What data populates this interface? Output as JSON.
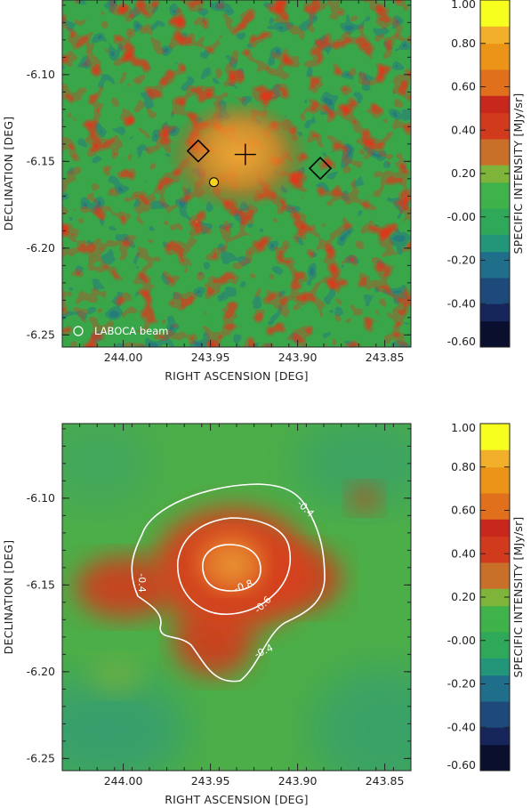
{
  "colors": {
    "colormap": [
      "#0b0f2e",
      "#17265a",
      "#1d4a7a",
      "#1f6f8a",
      "#23967a",
      "#2fa85a",
      "#3fb24a",
      "#7fb43a",
      "#c8702a",
      "#d23a1e",
      "#c8281c",
      "#e0701c",
      "#ec9418",
      "#f2b02a",
      "#f7ff1f"
    ]
  },
  "chart_data": [
    {
      "type": "heatmap",
      "title": "",
      "xlabel": "RIGHT ASCENSION [DEG]",
      "ylabel": "DECLINATION [DEG]",
      "xlim": [
        244.035,
        243.835
      ],
      "ylim": [
        -6.257,
        -6.057
      ],
      "x_ticks": [
        {
          "value": 244.0,
          "label": "244.00"
        },
        {
          "value": 243.95,
          "label": "243.95"
        },
        {
          "value": 243.9,
          "label": "243.90"
        },
        {
          "value": 243.85,
          "label": "243.85"
        }
      ],
      "y_ticks": [
        {
          "value": -6.1,
          "label": "-6.10"
        },
        {
          "value": -6.15,
          "label": "-6.15"
        },
        {
          "value": -6.2,
          "label": "-6.20"
        },
        {
          "value": -6.25,
          "label": "-6.25"
        }
      ],
      "colorbar": {
        "label": "SPECIFIC INTENSITY [MJy/sr]",
        "range": [
          -0.6,
          1.0
        ],
        "ticks": [
          {
            "value": 1.0,
            "label": "1.00"
          },
          {
            "value": 0.8,
            "label": "0.80"
          },
          {
            "value": 0.6,
            "label": "0.60"
          },
          {
            "value": 0.4,
            "label": "0.40"
          },
          {
            "value": 0.2,
            "label": "0.20"
          },
          {
            "value": 0.0,
            "label": "-0.00"
          },
          {
            "value": -0.2,
            "label": "-0.20"
          },
          {
            "value": -0.4,
            "label": "-0.40"
          },
          {
            "value": -0.6,
            "label": "-0.60"
          }
        ]
      },
      "markers": [
        {
          "shape": "diamond",
          "x": 243.957,
          "y": -6.144
        },
        {
          "shape": "cross",
          "x": 243.93,
          "y": -6.146
        },
        {
          "shape": "diamond",
          "x": 243.887,
          "y": -6.154
        },
        {
          "shape": "circle",
          "x": 243.948,
          "y": -6.162
        }
      ],
      "beam_label": "LABOCA beam"
    },
    {
      "type": "heatmap",
      "title": "",
      "xlabel": "RIGHT ASCENSION [DEG]",
      "ylabel": "DECLINATION [DEG]",
      "xlim": [
        244.035,
        243.835
      ],
      "ylim": [
        -6.257,
        -6.057
      ],
      "x_ticks": [
        {
          "value": 244.0,
          "label": "244.00"
        },
        {
          "value": 243.95,
          "label": "243.95"
        },
        {
          "value": 243.9,
          "label": "243.90"
        },
        {
          "value": 243.85,
          "label": "243.85"
        }
      ],
      "y_ticks": [
        {
          "value": -6.1,
          "label": "-6.10"
        },
        {
          "value": -6.15,
          "label": "-6.15"
        },
        {
          "value": -6.2,
          "label": "-6.20"
        },
        {
          "value": -6.25,
          "label": "-6.25"
        }
      ],
      "colorbar": {
        "label": "SPECIFIC INTENSITY [MJy/sr]",
        "range": [
          -0.6,
          1.0
        ],
        "ticks": [
          {
            "value": 1.0,
            "label": "1.00"
          },
          {
            "value": 0.8,
            "label": "0.80"
          },
          {
            "value": 0.6,
            "label": "0.60"
          },
          {
            "value": 0.4,
            "label": "0.40"
          },
          {
            "value": 0.2,
            "label": "0.20"
          },
          {
            "value": 0.0,
            "label": "-0.00"
          },
          {
            "value": -0.2,
            "label": "-0.20"
          },
          {
            "value": -0.4,
            "label": "-0.40"
          },
          {
            "value": -0.6,
            "label": "-0.60"
          }
        ]
      },
      "contours": [
        {
          "level": "-0.4",
          "label": "-0.4"
        },
        {
          "level": "-0.6",
          "label": "-0.6"
        },
        {
          "level": "-0.8",
          "label": "-0.8"
        }
      ]
    }
  ]
}
